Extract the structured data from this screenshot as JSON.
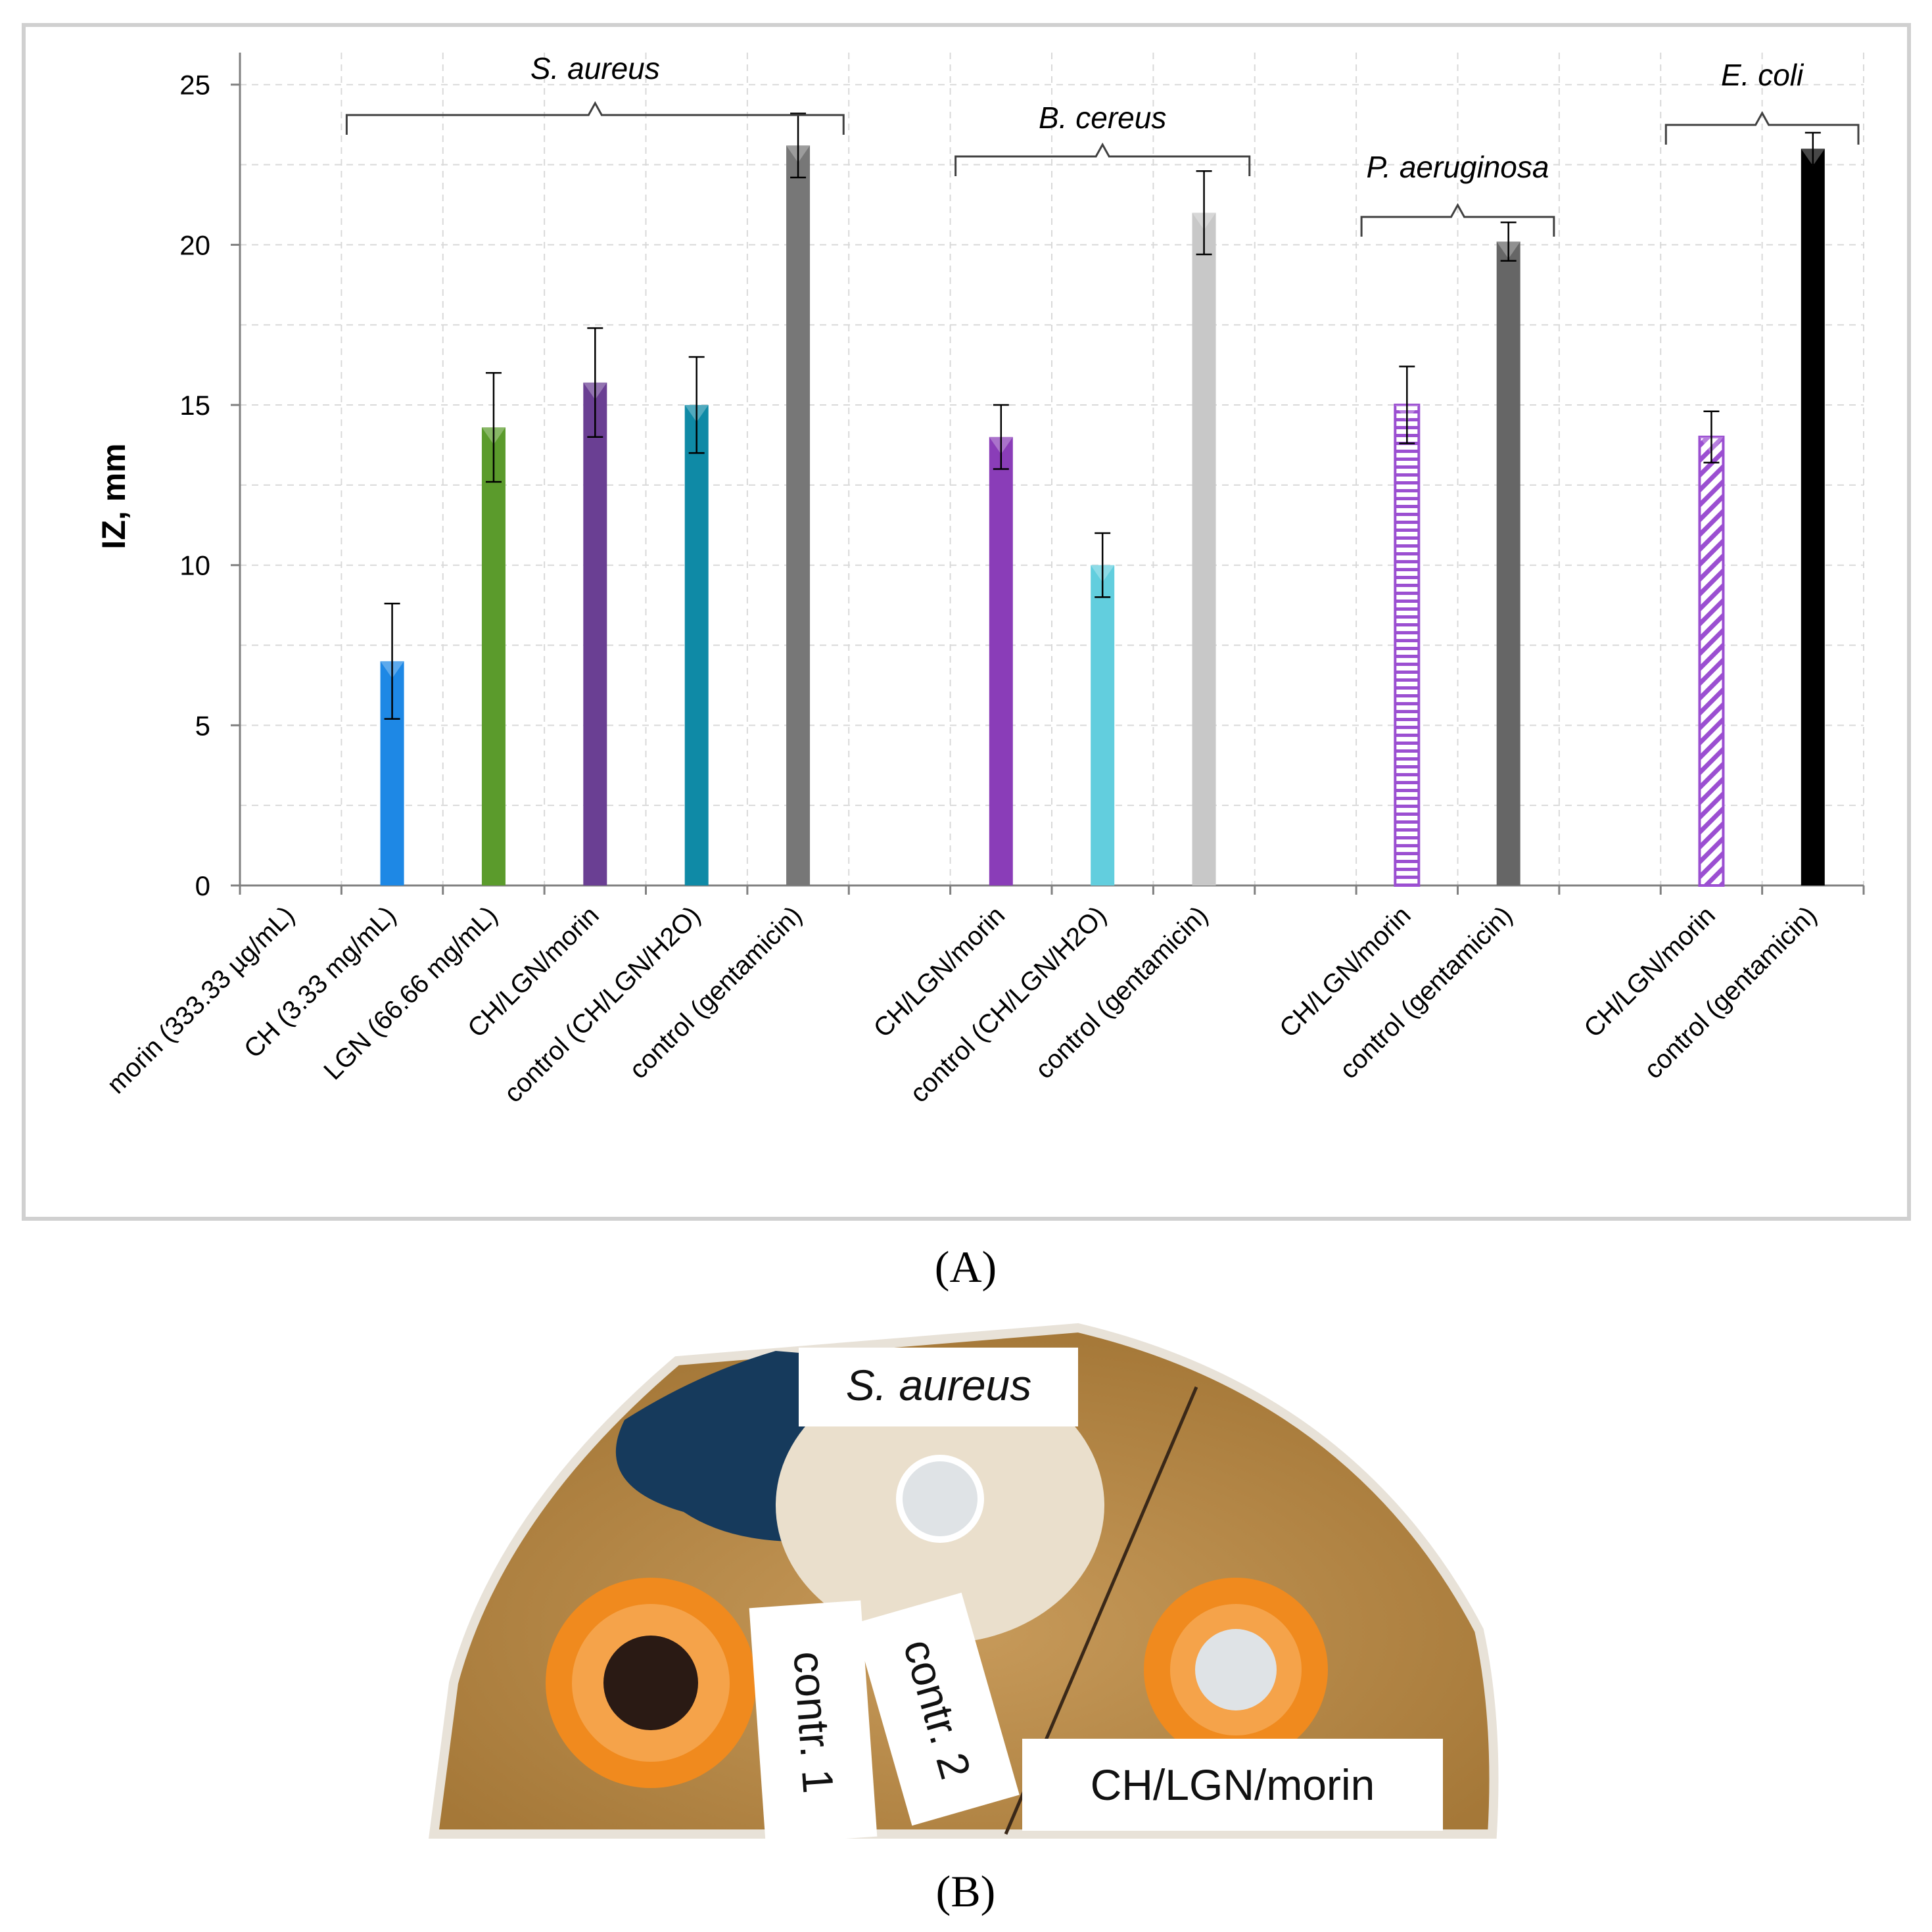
{
  "chart_data": {
    "type": "bar",
    "title": "",
    "xlabel": "",
    "ylabel": "IZ, mm",
    "ylim": [
      0,
      26
    ],
    "yticks": [
      0,
      5,
      10,
      15,
      20,
      25
    ],
    "grid": true,
    "categories": [
      "morin (333.33 µg/mL)",
      "CH (3.33 mg/mL)",
      "LGN (66.66 mg/mL)",
      "CH/LGN/morin",
      "control (CH/LGN/H2O)",
      "control (gentamicin)",
      "CH/LGN/morin",
      "control (CH/LGN/H2O)",
      "control (gentamicin)",
      "CH/LGN/morin",
      "control (gentamicin)",
      "CH/LGN/morin",
      "control (gentamicin)"
    ],
    "values": [
      0,
      7,
      14.3,
      15.7,
      15,
      23.1,
      14,
      10,
      21,
      15,
      20.1,
      14,
      23
    ],
    "errors": [
      0,
      1.8,
      1.7,
      1.7,
      1.5,
      1.0,
      1.0,
      1.0,
      1.3,
      1.2,
      0.6,
      0.8,
      0.5
    ],
    "colors": [
      "#1e88e5",
      "#1e88e5",
      "#5b9b2c",
      "#6a3f93",
      "#0f8aa6",
      "#777777",
      "#8a3db8",
      "#62cede",
      "#c8c8c8",
      "#9b4fd1",
      "#666666",
      "#9b4fd1",
      "#000000"
    ],
    "patterns": [
      "solid",
      "solid",
      "solid",
      "solid",
      "solid",
      "solid",
      "solid",
      "solid",
      "solid",
      "horizontal",
      "solid",
      "diagonal",
      "solid"
    ],
    "groups": [
      {
        "label": "S. aureus",
        "start": 1,
        "end": 5
      },
      {
        "label": "B. cereus",
        "start": 6,
        "end": 8
      },
      {
        "label": "P. aeruginosa",
        "start": 9,
        "end": 10
      },
      {
        "label": "E. coli",
        "start": 11,
        "end": 12
      }
    ]
  },
  "panel_labels": {
    "a": "(A)",
    "b": "(B)"
  },
  "photo": {
    "label_top": "S. aureus",
    "label_contr1": "contr. 1",
    "label_contr2": "contr. 2",
    "label_sample": "CH/LGN/morin"
  }
}
